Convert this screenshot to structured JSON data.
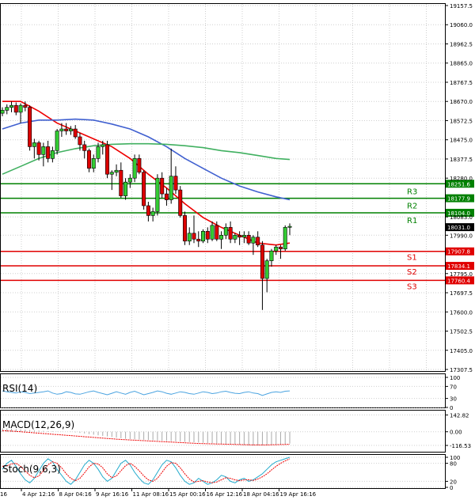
{
  "chart_data": {
    "type": "candlestick",
    "title": "",
    "price_axis": {
      "ylim": [
        17307.5,
        19157.5
      ],
      "ticks": [
        "19157.5",
        "19060.0",
        "18962.5",
        "18865.0",
        "18767.5",
        "18670.0",
        "18572.5",
        "18475.0",
        "18377.5",
        "18280.0",
        "18083.0",
        "17990.0",
        "17795.0",
        "17697.5",
        "17600.0",
        "17502.5",
        "17405.0",
        "17307.5"
      ],
      "tick_values": [
        19157.5,
        19060.0,
        18962.5,
        18865.0,
        18767.5,
        18670.0,
        18572.5,
        18475.0,
        18377.5,
        18280.0,
        18083.0,
        17990.0,
        17795.0,
        17697.5,
        17600.0,
        17502.5,
        17405.0,
        17307.5
      ],
      "grid": true
    },
    "time_axis": {
      "labels": [
        "4 Apr 12:16",
        "8 Apr 04:16",
        "9 Apr 16:16",
        "11 Apr 08:16",
        "15 Apr 00:16",
        "16 Apr 12:16",
        "18 Apr 04:16",
        "19 Apr 16:16"
      ],
      "edge_label": "16"
    },
    "current_price": {
      "value": 18031.0,
      "label": "18031.0",
      "color": "#000000"
    },
    "levels": [
      {
        "name": "R3",
        "value": 18251.6,
        "label": "18251.6",
        "color": "#008000"
      },
      {
        "name": "R2",
        "value": 18177.9,
        "label": "18177.9",
        "color": "#008000"
      },
      {
        "name": "R1",
        "value": 18104.0,
        "label": "18104.0",
        "color": "#008000"
      },
      {
        "name": "S1",
        "value": 17907.8,
        "label": "17907.8",
        "color": "#e00000"
      },
      {
        "name": "S2",
        "value": 17834.1,
        "label": "17834.1",
        "color": "#e00000"
      },
      {
        "name": "S3",
        "value": 17760.4,
        "label": "17760.4",
        "color": "#e00000"
      }
    ],
    "candles": [
      [
        18610,
        18640,
        18595,
        18625
      ],
      [
        18625,
        18655,
        18605,
        18640
      ],
      [
        18640,
        18670,
        18615,
        18650
      ],
      [
        18650,
        18665,
        18600,
        18615
      ],
      [
        18615,
        18660,
        18560,
        18650
      ],
      [
        18650,
        18670,
        18620,
        18640
      ],
      [
        18640,
        18650,
        18420,
        18440
      ],
      [
        18440,
        18480,
        18380,
        18460
      ],
      [
        18460,
        18470,
        18370,
        18400
      ],
      [
        18400,
        18460,
        18340,
        18440
      ],
      [
        18440,
        18470,
        18360,
        18380
      ],
      [
        18380,
        18440,
        18360,
        18420
      ],
      [
        18420,
        18530,
        18400,
        18520
      ],
      [
        18520,
        18560,
        18490,
        18530
      ],
      [
        18530,
        18560,
        18500,
        18520
      ],
      [
        18520,
        18545,
        18500,
        18530
      ],
      [
        18530,
        18550,
        18480,
        18490
      ],
      [
        18490,
        18510,
        18420,
        18450
      ],
      [
        18450,
        18470,
        18380,
        18420
      ],
      [
        18420,
        18430,
        18310,
        18330
      ],
      [
        18330,
        18400,
        18310,
        18380
      ],
      [
        18380,
        18460,
        18360,
        18440
      ],
      [
        18440,
        18470,
        18400,
        18450
      ],
      [
        18450,
        18470,
        18280,
        18300
      ],
      [
        18300,
        18320,
        18220,
        18310
      ],
      [
        18310,
        18350,
        18290,
        18320
      ],
      [
        18320,
        18360,
        18180,
        18190
      ],
      [
        18190,
        18280,
        18170,
        18260
      ],
      [
        18260,
        18300,
        18230,
        18280
      ],
      [
        18280,
        18400,
        18260,
        18380
      ],
      [
        18380,
        18400,
        18300,
        18310
      ],
      [
        18310,
        18320,
        18120,
        18140
      ],
      [
        18140,
        18160,
        18060,
        18090
      ],
      [
        18090,
        18130,
        18060,
        18110
      ],
      [
        18110,
        18300,
        18090,
        18280
      ],
      [
        18280,
        18310,
        18180,
        18200
      ],
      [
        18200,
        18230,
        18140,
        18170
      ],
      [
        18170,
        18430,
        18150,
        18290
      ],
      [
        18290,
        18340,
        18200,
        18220
      ],
      [
        18220,
        18240,
        18080,
        18090
      ],
      [
        18090,
        18110,
        17940,
        17960
      ],
      [
        17960,
        18030,
        17940,
        18000
      ],
      [
        18000,
        18090,
        17950,
        17970
      ],
      [
        17970,
        18010,
        17930,
        17960
      ],
      [
        17960,
        18020,
        17950,
        18010
      ],
      [
        18010,
        18030,
        17950,
        17970
      ],
      [
        17970,
        18060,
        17960,
        18040
      ],
      [
        18040,
        18060,
        17960,
        17970
      ],
      [
        17970,
        18010,
        17920,
        17990
      ],
      [
        17990,
        18050,
        17970,
        18030
      ],
      [
        18030,
        18060,
        17950,
        17970
      ],
      [
        17970,
        18000,
        17950,
        17990
      ],
      [
        17990,
        18010,
        17940,
        17980
      ],
      [
        17980,
        18010,
        17950,
        17990
      ],
      [
        17990,
        18010,
        17940,
        17950
      ],
      [
        17950,
        17990,
        17890,
        17980
      ],
      [
        17980,
        18010,
        17930,
        17940
      ],
      [
        17940,
        17960,
        17610,
        17770
      ],
      [
        17770,
        17870,
        17700,
        17860
      ],
      [
        17860,
        17920,
        17830,
        17910
      ],
      [
        17910,
        17940,
        17890,
        17930
      ],
      [
        17930,
        17940,
        17870,
        17920
      ],
      [
        17920,
        18040,
        17910,
        18030
      ],
      [
        18030,
        18050,
        17990,
        18035
      ]
    ],
    "series": [
      {
        "name": "",
        "color": "#ee0000",
        "kind": "ma",
        "points": [
          [
            0,
            18670
          ],
          [
            4,
            18670
          ],
          [
            8,
            18620
          ],
          [
            12,
            18560
          ],
          [
            16,
            18520
          ],
          [
            20,
            18480
          ],
          [
            24,
            18440
          ],
          [
            28,
            18380
          ],
          [
            32,
            18300
          ],
          [
            36,
            18230
          ],
          [
            40,
            18150
          ],
          [
            44,
            18080
          ],
          [
            48,
            18030
          ],
          [
            52,
            17990
          ],
          [
            56,
            17950
          ],
          [
            60,
            17940
          ],
          [
            63,
            17950
          ]
        ]
      },
      {
        "name": "",
        "color": "#4060d0",
        "kind": "ma",
        "points": [
          [
            0,
            18530
          ],
          [
            4,
            18560
          ],
          [
            8,
            18575
          ],
          [
            12,
            18575
          ],
          [
            16,
            18580
          ],
          [
            20,
            18575
          ],
          [
            24,
            18555
          ],
          [
            28,
            18530
          ],
          [
            32,
            18490
          ],
          [
            36,
            18440
          ],
          [
            40,
            18380
          ],
          [
            44,
            18330
          ],
          [
            48,
            18280
          ],
          [
            52,
            18240
          ],
          [
            56,
            18210
          ],
          [
            60,
            18185
          ],
          [
            63,
            18170
          ]
        ]
      },
      {
        "name": "",
        "color": "#40b060",
        "kind": "ma",
        "points": [
          [
            0,
            18300
          ],
          [
            4,
            18340
          ],
          [
            8,
            18380
          ],
          [
            12,
            18410
          ],
          [
            16,
            18430
          ],
          [
            20,
            18445
          ],
          [
            24,
            18452
          ],
          [
            28,
            18455
          ],
          [
            32,
            18455
          ],
          [
            36,
            18452
          ],
          [
            40,
            18445
          ],
          [
            44,
            18435
          ],
          [
            48,
            18420
          ],
          [
            52,
            18410
          ],
          [
            56,
            18395
          ],
          [
            60,
            18380
          ],
          [
            63,
            18375
          ]
        ]
      }
    ],
    "indicators": [
      {
        "name": "RSI(14)",
        "ticks": [
          "100",
          "70",
          "30",
          "0"
        ],
        "tick_values": [
          100,
          70,
          30,
          0
        ],
        "ylim": [
          0,
          100
        ],
        "line_color": "#4aa3e0",
        "values": [
          55,
          52,
          50,
          48,
          52,
          50,
          46,
          48,
          50,
          52,
          55,
          48,
          44,
          46,
          52,
          50,
          45,
          44,
          48,
          52,
          55,
          50,
          46,
          42,
          47,
          52,
          48,
          44,
          50,
          54,
          48,
          42,
          46,
          50,
          55,
          52,
          47,
          44,
          48,
          52,
          50,
          46,
          44,
          48,
          52,
          50,
          46,
          48,
          52,
          54,
          50,
          47,
          46,
          50,
          52,
          48,
          46,
          40,
          45,
          50,
          52,
          50,
          54,
          55
        ]
      },
      {
        "name": "MACD(12,26,9)",
        "ticks": [
          "142.82",
          "0.00",
          "-116.53"
        ],
        "tick_values": [
          142.82,
          0,
          -116.53
        ],
        "ylim": [
          -150,
          160
        ],
        "hist_color": "#aaaaaa",
        "signal_color": "#ee0000",
        "hist": [
          30,
          28,
          26,
          22,
          20,
          18,
          15,
          12,
          10,
          8,
          6,
          4,
          2,
          1,
          0,
          -2,
          -5,
          -10,
          -15,
          -20,
          -25,
          -30,
          -35,
          -40,
          -45,
          -50,
          -55,
          -60,
          -62,
          -64,
          -66,
          -68,
          -70,
          -72,
          -74,
          -76,
          -78,
          -80,
          -82,
          -84,
          -86,
          -88,
          -90,
          -92,
          -94,
          -96,
          -98,
          -100,
          -102,
          -104,
          -106,
          -108,
          -110,
          -112,
          -114,
          -115,
          -116,
          -116,
          -115,
          -113,
          -110,
          -107,
          -104,
          -100
        ],
        "signal": [
          10,
          8,
          6,
          3,
          0,
          -3,
          -6,
          -9,
          -12,
          -15,
          -18,
          -21,
          -24,
          -27,
          -30,
          -33,
          -36,
          -39,
          -42,
          -45,
          -48,
          -51,
          -54,
          -57,
          -60,
          -63,
          -66,
          -68,
          -70,
          -72,
          -74,
          -76,
          -78,
          -80,
          -82,
          -84,
          -86,
          -88,
          -90,
          -92,
          -94,
          -96,
          -98,
          -100,
          -101,
          -102,
          -103,
          -104,
          -105,
          -106,
          -107,
          -108,
          -109,
          -110,
          -111,
          -112,
          -112,
          -112,
          -112,
          -111,
          -110,
          -109,
          -108,
          -107
        ]
      },
      {
        "name": "Stoch(9,6,3)",
        "ticks": [
          "100",
          "80",
          "20",
          "0"
        ],
        "tick_values": [
          100,
          80,
          20,
          0
        ],
        "ylim": [
          0,
          100
        ],
        "main_color": "#22aacc",
        "signal_color": "#ee0000",
        "main": [
          60,
          80,
          90,
          70,
          45,
          25,
          15,
          30,
          55,
          80,
          95,
          85,
          60,
          40,
          20,
          10,
          25,
          50,
          75,
          90,
          80,
          60,
          35,
          20,
          30,
          55,
          80,
          90,
          75,
          50,
          30,
          15,
          10,
          25,
          50,
          75,
          90,
          85,
          65,
          40,
          20,
          10,
          15,
          30,
          20,
          10,
          15,
          25,
          40,
          35,
          20,
          15,
          25,
          30,
          20,
          25,
          35,
          45,
          60,
          75,
          85,
          90,
          95,
          100
        ],
        "signal": [
          70,
          72,
          78,
          80,
          70,
          55,
          40,
          32,
          38,
          55,
          75,
          85,
          80,
          65,
          45,
          30,
          22,
          30,
          48,
          68,
          80,
          78,
          65,
          45,
          32,
          38,
          55,
          72,
          80,
          70,
          55,
          38,
          25,
          20,
          30,
          50,
          70,
          82,
          80,
          65,
          45,
          28,
          18,
          20,
          22,
          18,
          15,
          18,
          25,
          32,
          30,
          25,
          22,
          25,
          25,
          23,
          28,
          35,
          45,
          58,
          70,
          80,
          88,
          95
        ]
      }
    ]
  }
}
